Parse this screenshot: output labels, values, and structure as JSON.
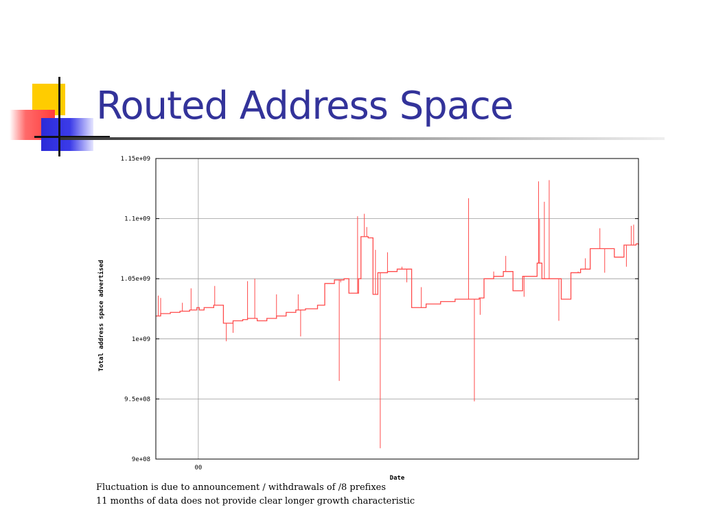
{
  "slide": {
    "title": "Routed Address Space",
    "captions": [
      "Fluctuation is due to announcement / withdrawals of /8 prefixes",
      "11 months of data does not provide clear longer growth characteristic"
    ]
  },
  "colors": {
    "title": "#33339a",
    "series": "#ff4a4a",
    "grid": "#9a9a9a"
  },
  "chart_data": {
    "type": "line",
    "xlabel": "Date",
    "ylabel": "Total address space advertised",
    "ylim": [
      900000000,
      1150000000
    ],
    "yticks": [
      900000000,
      950000000,
      1000000000,
      1050000000,
      1100000000,
      1150000000
    ],
    "ytick_labels": [
      "9e+08",
      "9.5e+08",
      "1e+09",
      "1.05e+09",
      "1.1e+09",
      "1.15e+09"
    ],
    "xtick_labels": [
      "00"
    ],
    "xtick_fraction": [
      0.088
    ],
    "grid": true,
    "series": [
      {
        "points": [
          [
            0.0,
            1019000000.0
          ],
          [
            0.01,
            1021000000.0
          ],
          [
            0.03,
            1022000000.0
          ],
          [
            0.05,
            1023000000.0
          ],
          [
            0.07,
            1024000000.0
          ],
          [
            0.085,
            1026000000.0
          ],
          [
            0.09,
            1024000000.0
          ],
          [
            0.1,
            1026000000.0
          ],
          [
            0.12,
            1028000000.0
          ],
          [
            0.14,
            1013000000.0
          ],
          [
            0.16,
            1015000000.0
          ],
          [
            0.18,
            1016000000.0
          ],
          [
            0.19,
            1017000000.0
          ],
          [
            0.21,
            1015000000.0
          ],
          [
            0.23,
            1017000000.0
          ],
          [
            0.25,
            1019000000.0
          ],
          [
            0.27,
            1022000000.0
          ],
          [
            0.29,
            1024000000.0
          ],
          [
            0.31,
            1025000000.0
          ],
          [
            0.335,
            1028000000.0
          ],
          [
            0.35,
            1046000000.0
          ],
          [
            0.37,
            1049000000.0
          ],
          [
            0.39,
            1050000000.0
          ],
          [
            0.4,
            1038000000.0
          ],
          [
            0.42,
            1050000000.0
          ],
          [
            0.425,
            1085000000.0
          ],
          [
            0.44,
            1084000000.0
          ],
          [
            0.45,
            1037000000.0
          ],
          [
            0.46,
            1055000000.0
          ],
          [
            0.48,
            1056000000.0
          ],
          [
            0.5,
            1058000000.0
          ],
          [
            0.53,
            1026000000.0
          ],
          [
            0.56,
            1029000000.0
          ],
          [
            0.59,
            1031000000.0
          ],
          [
            0.62,
            1033000000.0
          ],
          [
            0.67,
            1034000000.0
          ],
          [
            0.68,
            1050000000.0
          ],
          [
            0.7,
            1052000000.0
          ],
          [
            0.72,
            1056000000.0
          ],
          [
            0.74,
            1040000000.0
          ],
          [
            0.76,
            1052000000.0
          ],
          [
            0.79,
            1063000000.0
          ],
          [
            0.8,
            1050000000.0
          ],
          [
            0.84,
            1033000000.0
          ],
          [
            0.86,
            1055000000.0
          ],
          [
            0.88,
            1058000000.0
          ],
          [
            0.9,
            1075000000.0
          ],
          [
            0.95,
            1068000000.0
          ],
          [
            0.97,
            1078000000.0
          ],
          [
            0.995,
            1079000000.0
          ],
          [
            1.0,
            1078000000.0
          ]
        ],
        "spikes": [
          [
            0.005,
            1036000000.0
          ],
          [
            0.01,
            1034000000.0
          ],
          [
            0.055,
            1030000000.0
          ],
          [
            0.073,
            1042000000.0
          ],
          [
            0.122,
            1044000000.0
          ],
          [
            0.146,
            998000000.0
          ],
          [
            0.16,
            1005000000.0
          ],
          [
            0.19,
            1048000000.0
          ],
          [
            0.205,
            1050000000.0
          ],
          [
            0.25,
            1037000000.0
          ],
          [
            0.295,
            1037000000.0
          ],
          [
            0.3,
            1002000000.0
          ],
          [
            0.38,
            965000000.0
          ],
          [
            0.383,
            1047000000.0
          ],
          [
            0.418,
            1102000000.0
          ],
          [
            0.432,
            1104000000.0
          ],
          [
            0.437,
            1093000000.0
          ],
          [
            0.455,
            1074000000.0
          ],
          [
            0.465,
            909000000.0
          ],
          [
            0.48,
            1072000000.0
          ],
          [
            0.51,
            1060000000.0
          ],
          [
            0.52,
            1047000000.0
          ],
          [
            0.55,
            1043000000.0
          ],
          [
            0.648,
            1117000000.0
          ],
          [
            0.66,
            948000000.0
          ],
          [
            0.672,
            1020000000.0
          ],
          [
            0.7,
            1056000000.0
          ],
          [
            0.725,
            1069000000.0
          ],
          [
            0.763,
            1035000000.0
          ],
          [
            0.793,
            1131000000.0
          ],
          [
            0.795,
            1100000000.0
          ],
          [
            0.805,
            1114000000.0
          ],
          [
            0.815,
            1132000000.0
          ],
          [
            0.835,
            1015000000.0
          ],
          [
            0.875,
            1056000000.0
          ],
          [
            0.89,
            1067000000.0
          ],
          [
            0.92,
            1092000000.0
          ],
          [
            0.93,
            1055000000.0
          ],
          [
            0.975,
            1060000000.0
          ],
          [
            0.985,
            1094000000.0
          ],
          [
            0.99,
            1095000000.0
          ]
        ]
      }
    ]
  }
}
